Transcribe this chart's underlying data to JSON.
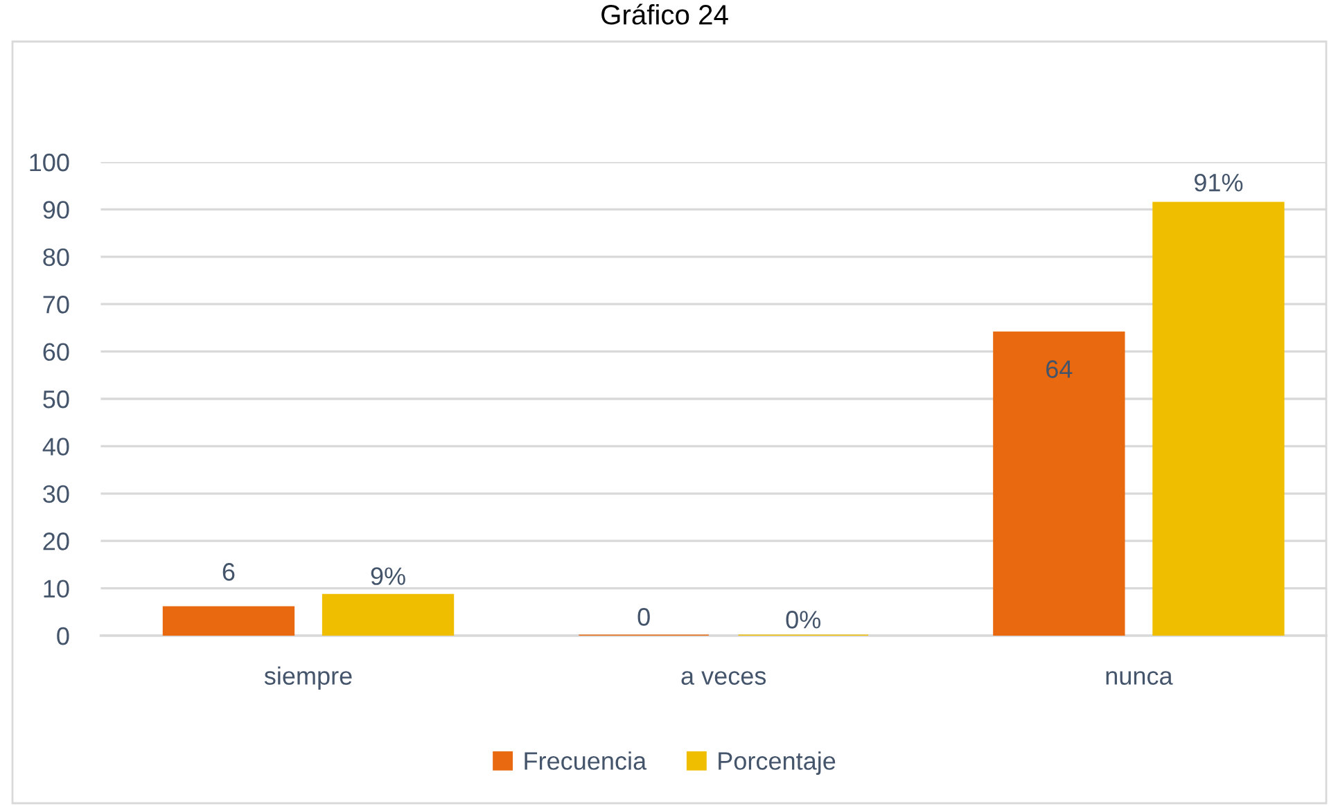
{
  "chart_data": {
    "type": "bar",
    "title": "Gráfico 24",
    "categories": [
      "siempre",
      "a veces",
      "nunca"
    ],
    "series": [
      {
        "name": "Frecuencia",
        "color": "#E8690F",
        "values": [
          6,
          0,
          64
        ],
        "value_labels": [
          "6",
          "0",
          "64"
        ]
      },
      {
        "name": "Porcentaje",
        "color": "#F0BE00",
        "values": [
          8.6,
          0,
          91.4
        ],
        "value_labels": [
          "9%",
          "0%",
          "91%"
        ]
      }
    ],
    "ylim": [
      0,
      100
    ],
    "yticks": [
      0,
      10,
      20,
      30,
      40,
      50,
      60,
      70,
      80,
      90,
      100
    ],
    "grid": "y",
    "legend": "bottom"
  }
}
